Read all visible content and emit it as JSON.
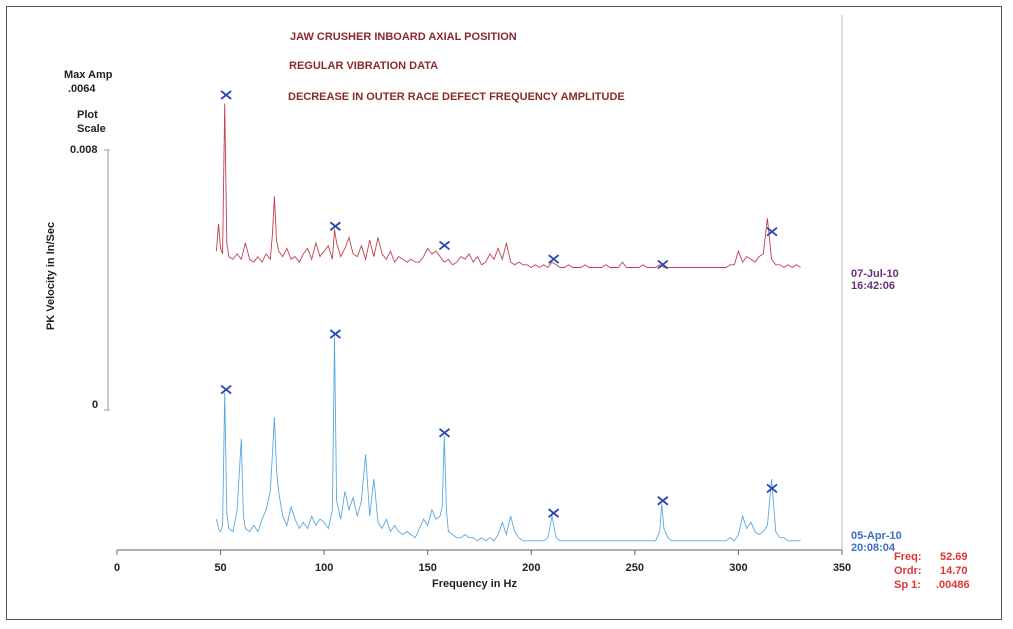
{
  "header": {
    "line1": "JAW CRUSHER INBOARD AXIAL POSITION",
    "line2": "REGULAR VIBRATION DATA",
    "line3": "DECREASE IN OUTER RACE DEFECT FREQUENCY AMPLITUDE"
  },
  "side": {
    "max_amp_label": "Max Amp",
    "max_amp_value": ".0064",
    "plot_scale_1": "Plot",
    "plot_scale_2": "Scale"
  },
  "cursor": {
    "freq_label": "Freq:",
    "freq_value": "52.69",
    "ordr_label": "Ordr:",
    "ordr_value": "14.70",
    "sp_label": "Sp 1:",
    "sp_value": ".00486"
  },
  "colors": {
    "trace_top": "#c0404f",
    "trace_bottom": "#5aa8e0",
    "marker": "#2845b0",
    "title": "#8b2a2a",
    "readout": "#e03535"
  },
  "chart_data": {
    "type": "line",
    "xlabel": "Frequency in Hz",
    "ylabel": "PK Velocity in In/Sec",
    "xlim": [
      0,
      350
    ],
    "xticks": [
      "0",
      "50",
      "100",
      "150",
      "200",
      "250",
      "300",
      "350"
    ],
    "xtick_values": [
      0,
      50,
      100,
      150,
      200,
      250,
      300,
      350
    ],
    "yticks": [
      "0.008",
      "0"
    ],
    "series": [
      {
        "name": "07-Jul-10",
        "time": "16:42:06",
        "x": [
          48,
          49,
          50,
          51,
          52,
          53,
          54,
          56,
          58,
          60,
          62,
          64,
          66,
          68,
          70,
          72,
          74,
          75,
          76,
          77,
          78,
          80,
          82,
          84,
          86,
          88,
          90,
          92,
          94,
          96,
          98,
          100,
          102,
          104,
          105,
          106,
          108,
          110,
          112,
          114,
          116,
          118,
          120,
          122,
          124,
          126,
          128,
          130,
          132,
          134,
          136,
          138,
          140,
          142,
          144,
          146,
          148,
          150,
          152,
          154,
          156,
          158,
          160,
          162,
          164,
          166,
          168,
          170,
          172,
          174,
          176,
          178,
          180,
          182,
          184,
          186,
          188,
          190,
          192,
          194,
          196,
          198,
          200,
          202,
          204,
          206,
          208,
          210,
          212,
          214,
          216,
          218,
          220,
          222,
          224,
          226,
          228,
          230,
          232,
          234,
          236,
          238,
          240,
          242,
          244,
          246,
          248,
          250,
          252,
          254,
          256,
          258,
          260,
          262,
          264,
          266,
          268,
          270,
          272,
          274,
          276,
          278,
          280,
          282,
          284,
          286,
          288,
          290,
          292,
          294,
          296,
          298,
          300,
          302,
          304,
          306,
          308,
          310,
          312,
          314,
          316,
          318,
          320,
          322,
          324,
          326,
          328,
          330
        ],
        "y": [
          0.0008,
          0.0018,
          0.0009,
          0.0007,
          0.0062,
          0.0011,
          0.0006,
          0.0005,
          0.0007,
          0.0005,
          0.0011,
          0.0005,
          0.0004,
          0.0006,
          0.0004,
          0.0007,
          0.0005,
          0.0014,
          0.0028,
          0.0012,
          0.0008,
          0.0006,
          0.0009,
          0.0005,
          0.0006,
          0.0004,
          0.0007,
          0.0009,
          0.0005,
          0.0011,
          0.0006,
          0.0008,
          0.001,
          0.0005,
          0.0016,
          0.0011,
          0.0006,
          0.0009,
          0.0013,
          0.0007,
          0.0006,
          0.001,
          0.0005,
          0.0012,
          0.0006,
          0.0013,
          0.0007,
          0.0005,
          0.0008,
          0.0004,
          0.0006,
          0.0005,
          0.0004,
          0.0005,
          0.0004,
          0.0004,
          0.0006,
          0.0009,
          0.0007,
          0.0008,
          0.0006,
          0.0004,
          0.0005,
          0.0003,
          0.0004,
          0.0006,
          0.0005,
          0.0007,
          0.0004,
          0.0006,
          0.0003,
          0.0004,
          0.0007,
          0.0005,
          0.0009,
          0.0005,
          0.0011,
          0.0004,
          0.0003,
          0.0004,
          0.0003,
          0.0003,
          0.0002,
          0.0003,
          0.0002,
          0.0003,
          0.0002,
          0.0004,
          0.0003,
          0.0002,
          0.0002,
          0.0003,
          0.0002,
          0.0002,
          0.0002,
          0.0003,
          0.0002,
          0.0002,
          0.0002,
          0.0002,
          0.0003,
          0.0002,
          0.0002,
          0.0002,
          0.0004,
          0.0002,
          0.0002,
          0.0002,
          0.0002,
          0.0003,
          0.0002,
          0.0002,
          0.0002,
          0.0003,
          0.0002,
          0.0002,
          0.0002,
          0.0002,
          0.0002,
          0.0002,
          0.0002,
          0.0002,
          0.0002,
          0.0002,
          0.0002,
          0.0002,
          0.0002,
          0.0002,
          0.0002,
          0.0002,
          0.0003,
          0.0003,
          0.0008,
          0.0004,
          0.0006,
          0.0005,
          0.0004,
          0.0006,
          0.0007,
          0.002,
          0.0005,
          0.0003,
          0.0003,
          0.0002,
          0.0003,
          0.0002,
          0.0003,
          0.0002
        ],
        "markers_x": [
          52.7,
          105.4,
          158.1,
          210.8,
          263.5,
          316.2
        ],
        "markers_y": [
          0.0064,
          0.0016,
          0.0009,
          0.0004,
          0.0002,
          0.0014
        ]
      },
      {
        "name": "05-Apr-10",
        "time": "20:08:04",
        "x": [
          48,
          49,
          50,
          51,
          52,
          53,
          54,
          56,
          58,
          60,
          61,
          62,
          64,
          66,
          68,
          70,
          72,
          74,
          75,
          76,
          77,
          78,
          80,
          82,
          84,
          86,
          88,
          90,
          92,
          94,
          96,
          98,
          100,
          102,
          104,
          105,
          106,
          108,
          110,
          112,
          114,
          116,
          118,
          120,
          122,
          124,
          126,
          128,
          130,
          132,
          134,
          136,
          138,
          140,
          142,
          144,
          146,
          148,
          150,
          152,
          154,
          156,
          157,
          158,
          159,
          160,
          162,
          164,
          166,
          168,
          170,
          172,
          174,
          176,
          178,
          180,
          182,
          184,
          186,
          188,
          190,
          192,
          194,
          196,
          198,
          200,
          202,
          204,
          206,
          208,
          210,
          212,
          214,
          216,
          218,
          220,
          222,
          224,
          226,
          228,
          230,
          232,
          234,
          236,
          238,
          240,
          242,
          244,
          246,
          248,
          250,
          252,
          254,
          256,
          258,
          260,
          262,
          263,
          264,
          266,
          268,
          270,
          272,
          274,
          276,
          278,
          280,
          282,
          284,
          286,
          288,
          290,
          292,
          294,
          296,
          298,
          300,
          302,
          304,
          306,
          308,
          310,
          312,
          314,
          316,
          318,
          320,
          322,
          324,
          326,
          328,
          330
        ],
        "y": [
          0.0009,
          0.0006,
          0.0005,
          0.0007,
          0.005,
          0.0011,
          0.0006,
          0.0005,
          0.0012,
          0.0035,
          0.001,
          0.0006,
          0.0005,
          0.0007,
          0.0005,
          0.0009,
          0.0012,
          0.0018,
          0.003,
          0.0042,
          0.0025,
          0.0018,
          0.001,
          0.0007,
          0.0013,
          0.0009,
          0.0006,
          0.0008,
          0.0006,
          0.001,
          0.0007,
          0.0009,
          0.0008,
          0.0006,
          0.0012,
          0.0068,
          0.0015,
          0.0009,
          0.0018,
          0.0012,
          0.0016,
          0.001,
          0.0015,
          0.003,
          0.001,
          0.0022,
          0.0008,
          0.0006,
          0.0009,
          0.0005,
          0.0007,
          0.0005,
          0.0004,
          0.0005,
          0.0004,
          0.0003,
          0.0006,
          0.0009,
          0.0007,
          0.0012,
          0.0009,
          0.001,
          0.0013,
          0.0036,
          0.0012,
          0.0005,
          0.0004,
          0.0003,
          0.0003,
          0.0004,
          0.0003,
          0.0003,
          0.0002,
          0.0003,
          0.0002,
          0.0003,
          0.0002,
          0.0004,
          0.0008,
          0.0004,
          0.001,
          0.0005,
          0.0003,
          0.0002,
          0.0002,
          0.0002,
          0.0002,
          0.0002,
          0.0002,
          0.0003,
          0.001,
          0.0003,
          0.0002,
          0.0002,
          0.0002,
          0.0002,
          0.0002,
          0.0002,
          0.0002,
          0.0002,
          0.0002,
          0.0002,
          0.0002,
          0.0002,
          0.0002,
          0.0002,
          0.0002,
          0.0002,
          0.0002,
          0.0002,
          0.0002,
          0.0002,
          0.0002,
          0.0002,
          0.0002,
          0.0002,
          0.0005,
          0.0014,
          0.0006,
          0.0003,
          0.0002,
          0.0002,
          0.0002,
          0.0002,
          0.0002,
          0.0002,
          0.0002,
          0.0002,
          0.0002,
          0.0002,
          0.0002,
          0.0002,
          0.0002,
          0.0002,
          0.0003,
          0.0002,
          0.0004,
          0.001,
          0.0006,
          0.0008,
          0.0005,
          0.0004,
          0.0005,
          0.0007,
          0.0022,
          0.0005,
          0.0003,
          0.0003,
          0.0002,
          0.0002,
          0.0002,
          0.0002
        ],
        "markers_x": [
          52.7,
          105.4,
          158.1,
          210.8,
          263.5,
          316.2
        ],
        "markers_y": [
          0.005,
          0.0068,
          0.0036,
          0.001,
          0.0014,
          0.0018
        ]
      }
    ]
  }
}
